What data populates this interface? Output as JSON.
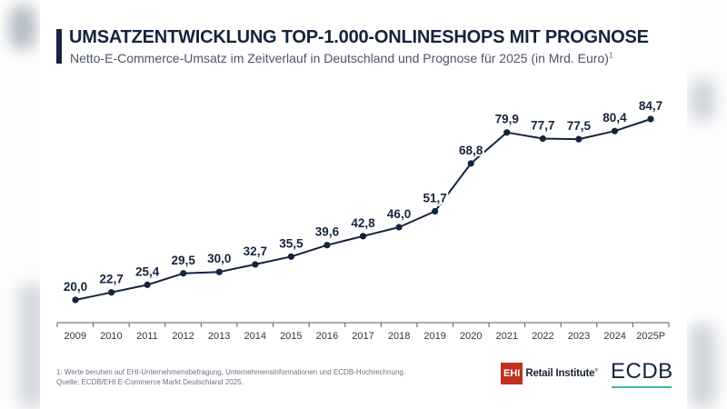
{
  "header": {
    "title": "UMSATZENTWICKLUNG TOP-1.000-ONLINESHOPS MIT PROGNOSE",
    "subtitle": "Netto-E-Commerce-Umsatz im Zeitverlauf in Deutschland und Prognose für 2025 (in Mrd. Euro)",
    "subtitle_footnote_marker": "1"
  },
  "colors": {
    "primary": "#13243d",
    "ehi_red": "#c0311f",
    "ecdb_green": "#3bbd9a"
  },
  "chart_data": {
    "type": "line",
    "title": "UMSATZENTWICKLUNG TOP-1.000-ONLINESHOPS MIT PROGNOSE",
    "subtitle": "Netto-E-Commerce-Umsatz im Zeitverlauf in Deutschland und Prognose für 2025 (in Mrd. Euro)",
    "xlabel": "",
    "ylabel": "",
    "categories": [
      "2009",
      "2010",
      "2011",
      "2012",
      "2013",
      "2014",
      "2015",
      "2016",
      "2017",
      "2018",
      "2019",
      "2020",
      "2021",
      "2022",
      "2023",
      "2024",
      "2025P"
    ],
    "series": [
      {
        "name": "Netto-E-Commerce-Umsatz (Mrd. Euro)",
        "values": [
          20.0,
          22.7,
          25.4,
          29.5,
          30.0,
          32.7,
          35.5,
          39.6,
          42.8,
          46.0,
          51.7,
          68.8,
          79.9,
          77.7,
          77.5,
          80.4,
          84.7
        ],
        "labels": [
          "20,0",
          "22,7",
          "25,4",
          "29,5",
          "30,0",
          "32,7",
          "35,5",
          "39,6",
          "42,8",
          "46,0",
          "51,7",
          "68,8",
          "79,9",
          "77,7",
          "77,5",
          "80,4",
          "84,7"
        ]
      }
    ],
    "ylim": [
      0,
      90
    ],
    "grid": false,
    "legend": "none",
    "y_axis_visible": false,
    "data_labels": true
  },
  "footer": {
    "footnote": "1: Werte beruhen auf EHI-Unternehmensbefragung, Unternehmensinformationen und ECDB-Hochrechnung.",
    "source": "Quelle: ECDB/EHI E-Commerce Markt Deutschland 2025.",
    "ehi_logo_box": "EHI",
    "ehi_logo_text": "Retail Institute",
    "ehi_logo_mark": "®",
    "ecdb_logo_text": "ECDB"
  }
}
